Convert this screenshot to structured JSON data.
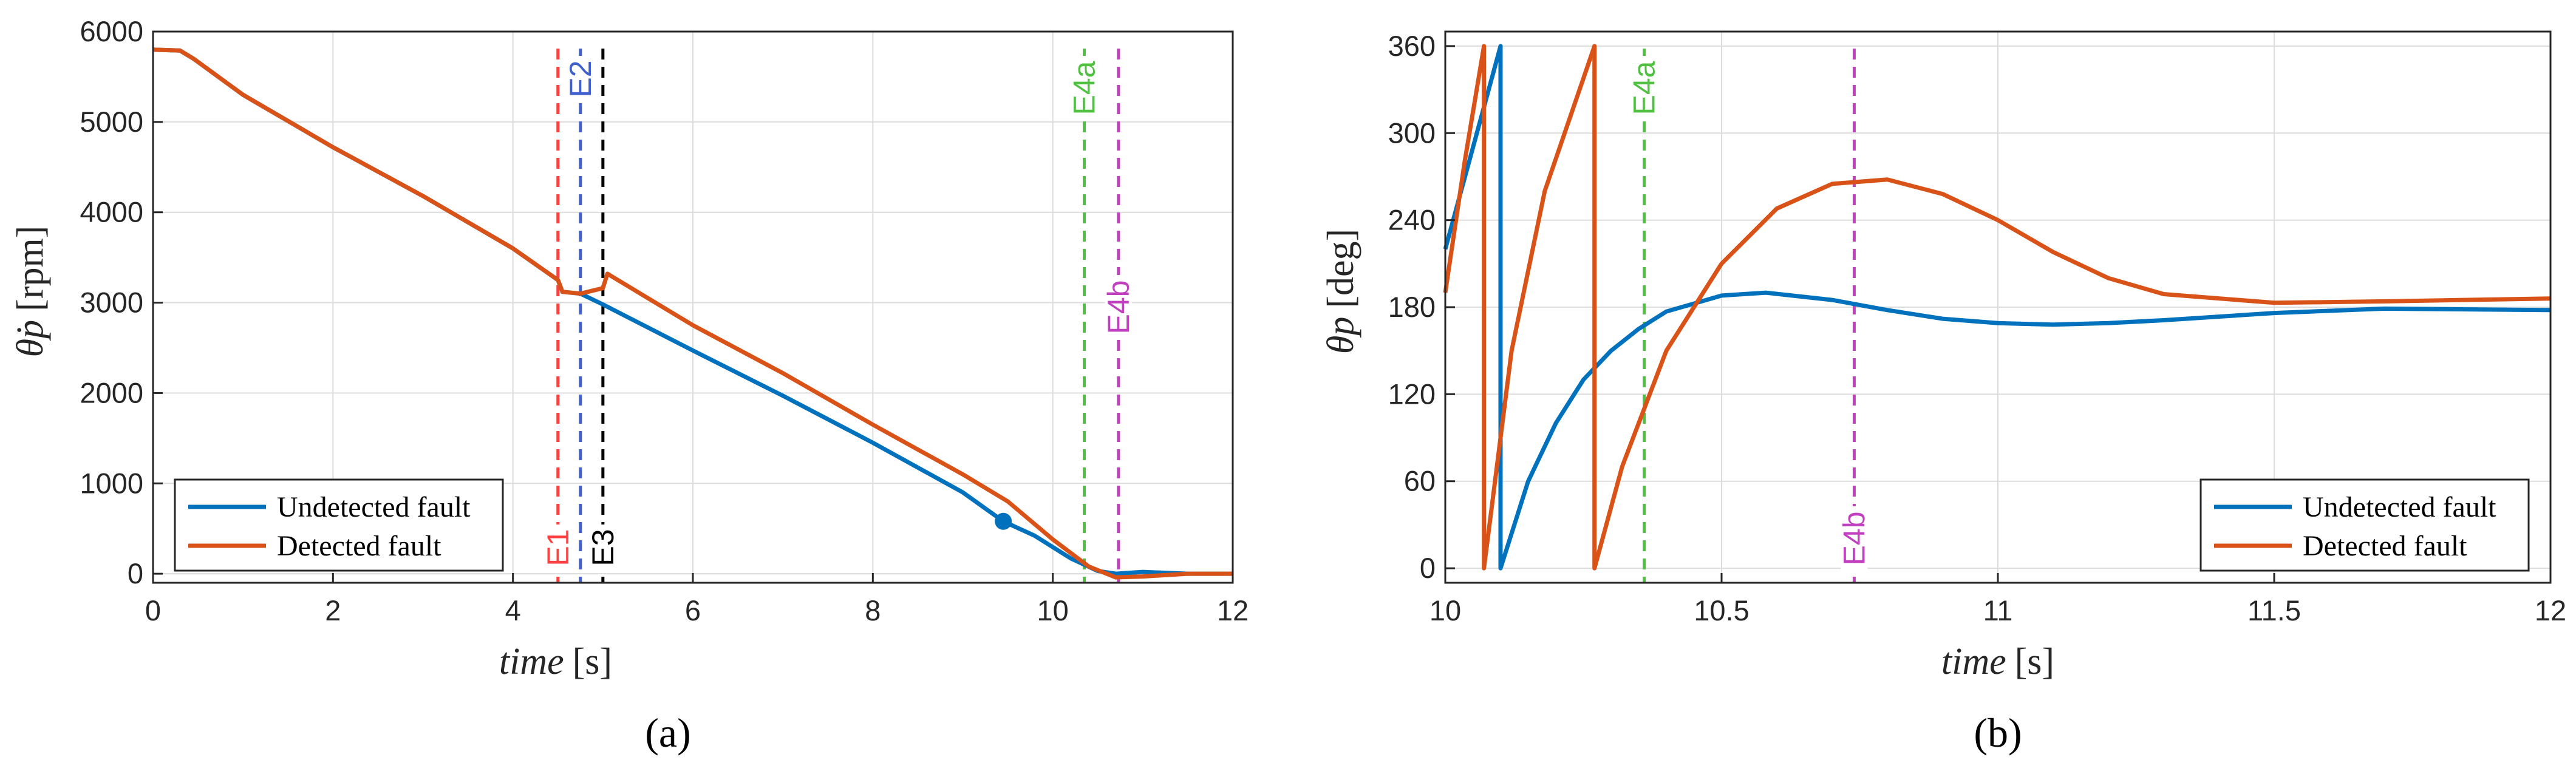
{
  "colors": {
    "undetected": "#0072BD",
    "detected": "#D95319",
    "E1": "#FF4040",
    "E2": "#4060D0",
    "E3": "#000000",
    "E4a": "#50C040",
    "E4b": "#C040C0",
    "grid": "#DCDCDC",
    "axis": "#262626"
  },
  "chart_data": [
    {
      "type": "line",
      "caption": "(a)",
      "xlabel_var": "time",
      "xlabel_unit": "[s]",
      "ylabel_var": "θ̇p",
      "ylabel_unit": "[rpm]",
      "xlim": [
        0,
        12
      ],
      "ylim": [
        -100,
        6000
      ],
      "xticks": [
        0,
        2,
        4,
        6,
        8,
        10,
        12
      ],
      "yticks": [
        0,
        1000,
        2000,
        3000,
        4000,
        5000,
        6000
      ],
      "grid": true,
      "legend_position": "bottom-left",
      "series": [
        {
          "name": "Undetected fault",
          "color_key": "undetected",
          "x": [
            0,
            0.3,
            0.45,
            1.0,
            2.0,
            3.0,
            4.0,
            4.5,
            4.55,
            4.75,
            5.0,
            6.0,
            7.0,
            8.0,
            9.0,
            9.45,
            9.8,
            10.2,
            10.5,
            10.7,
            11.0,
            11.5,
            12.0
          ],
          "y": [
            5800,
            5790,
            5700,
            5300,
            4720,
            4180,
            3600,
            3250,
            3120,
            3100,
            2980,
            2470,
            1970,
            1450,
            900,
            580,
            420,
            170,
            30,
            0,
            20,
            0,
            0
          ]
        },
        {
          "name": "Detected fault",
          "color_key": "detected",
          "x": [
            0,
            0.3,
            0.45,
            1.0,
            2.0,
            3.0,
            4.0,
            4.5,
            4.55,
            4.75,
            5.0,
            5.05,
            6.0,
            7.0,
            8.0,
            9.0,
            9.5,
            10.0,
            10.4,
            10.7,
            11.0,
            11.5,
            12.0
          ],
          "y": [
            5800,
            5790,
            5700,
            5300,
            4720,
            4180,
            3600,
            3250,
            3120,
            3100,
            3160,
            3320,
            2750,
            2220,
            1650,
            1100,
            800,
            380,
            80,
            -40,
            -30,
            0,
            0
          ]
        }
      ],
      "events": [
        {
          "label": "E1",
          "x": 4.5,
          "color_key": "E1",
          "label_position": "bottom"
        },
        {
          "label": "E2",
          "x": 4.75,
          "color_key": "E2",
          "label_position": "top"
        },
        {
          "label": "E3",
          "x": 5.0,
          "color_key": "E3",
          "label_position": "bottom"
        },
        {
          "label": "E4a",
          "x": 10.35,
          "color_key": "E4a",
          "label_position": "top"
        },
        {
          "label": "E4b",
          "x": 10.73,
          "color_key": "E4b",
          "label_position": "middle"
        }
      ]
    },
    {
      "type": "line",
      "caption": "(b)",
      "xlabel_var": "time",
      "xlabel_unit": "[s]",
      "ylabel_var": "θp",
      "ylabel_unit": "[deg]",
      "xlim": [
        10,
        12
      ],
      "ylim": [
        -10,
        370
      ],
      "xticks": [
        10,
        10.5,
        11,
        11.5,
        12
      ],
      "yticks": [
        0,
        60,
        120,
        180,
        240,
        300,
        360
      ],
      "grid": true,
      "legend_position": "bottom-right",
      "series": [
        {
          "name": "Undetected fault",
          "color_key": "undetected",
          "x": [
            10.0,
            10.05,
            10.1,
            10.1,
            10.15,
            10.2,
            10.25,
            10.3,
            10.35,
            10.4,
            10.5,
            10.58,
            10.7,
            10.8,
            10.9,
            11.0,
            11.1,
            11.2,
            11.3,
            11.5,
            11.7,
            12.0
          ],
          "y": [
            220,
            290,
            360,
            0,
            60,
            100,
            130,
            150,
            165,
            177,
            188,
            190,
            185,
            178,
            172,
            169,
            168,
            169,
            171,
            176,
            179,
            178
          ]
        },
        {
          "name": "Detected fault",
          "color_key": "detected",
          "x": [
            10.0,
            10.035,
            10.07,
            10.07,
            10.12,
            10.18,
            10.27,
            10.27,
            10.32,
            10.4,
            10.5,
            10.6,
            10.7,
            10.8,
            10.9,
            11.0,
            11.1,
            11.2,
            11.3,
            11.5,
            11.7,
            12.0
          ],
          "y": [
            190,
            280,
            360,
            0,
            150,
            260,
            360,
            0,
            70,
            150,
            210,
            248,
            265,
            268,
            258,
            240,
            218,
            200,
            189,
            183,
            184,
            186
          ]
        }
      ],
      "events": [
        {
          "label": "E4a",
          "x": 10.36,
          "color_key": "E4a",
          "label_position": "top"
        },
        {
          "label": "E4b",
          "x": 10.74,
          "color_key": "E4b",
          "label_position": "bottom"
        }
      ]
    }
  ]
}
